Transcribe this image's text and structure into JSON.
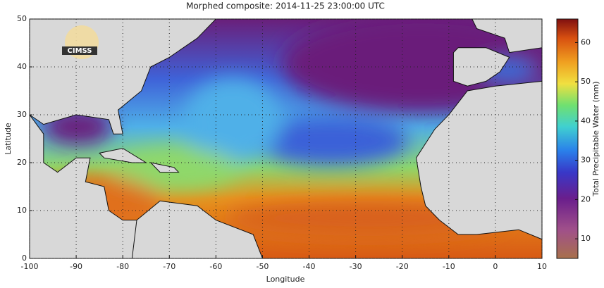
{
  "title": "Morphed composite: 2014-11-25 23:00:00 UTC",
  "x_label": "Longitude",
  "y_label": "Latitude",
  "xlim": [
    -100,
    10
  ],
  "xticks": [
    -100,
    -90,
    -80,
    -70,
    -60,
    -50,
    -40,
    -30,
    -20,
    -10,
    0,
    10
  ],
  "ylim": [
    0,
    50
  ],
  "yticks": [
    0,
    10,
    20,
    30,
    40,
    50
  ],
  "colorbar": {
    "label": "Total Precipitable Water (mm)",
    "lim": [
      5,
      66
    ],
    "ticks": [
      10,
      20,
      30,
      40,
      50,
      60
    ]
  },
  "logo": "CIMSS"
}
